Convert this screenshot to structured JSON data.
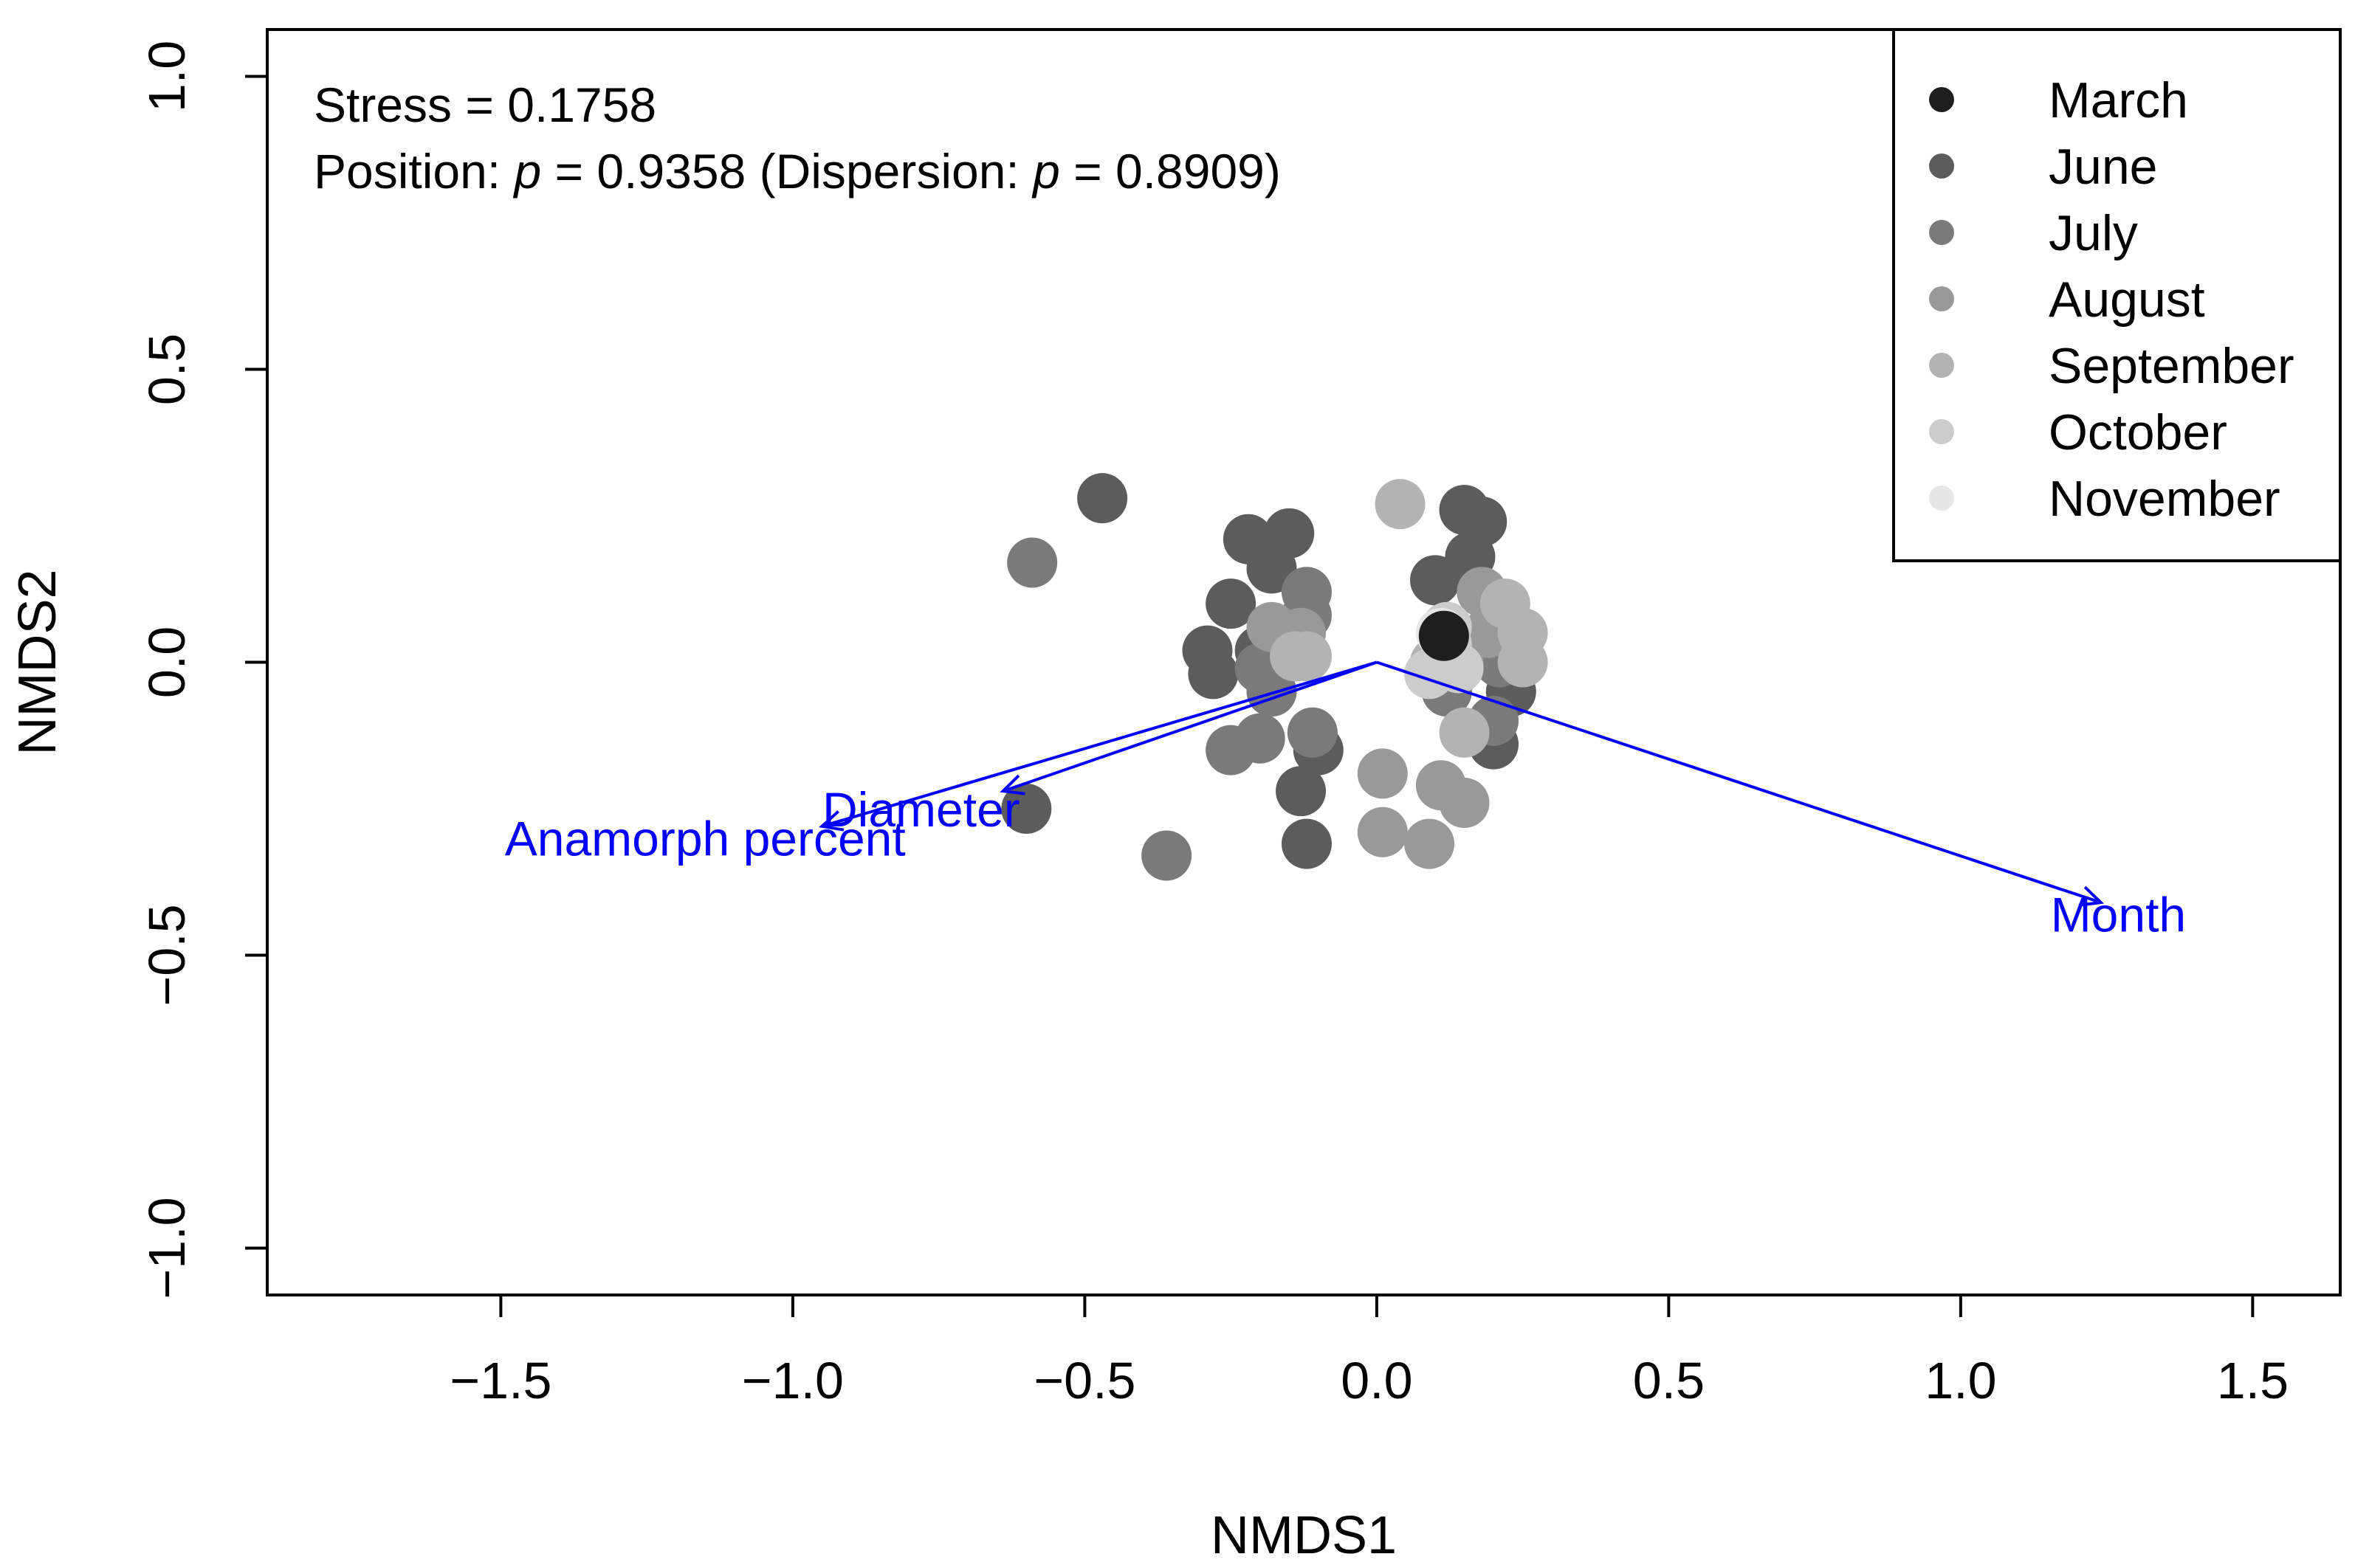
{
  "chart_data": {
    "type": "scatter",
    "xlabel": "NMDS1",
    "ylabel": "NMDS2",
    "xlim": [
      -1.9,
      1.65
    ],
    "ylim": [
      -1.08,
      1.08
    ],
    "xticks": [
      -1.5,
      -1.0,
      -0.5,
      0.0,
      0.5,
      1.0,
      1.5
    ],
    "xtick_labels": [
      "−1.5",
      "−1.0",
      "−0.5",
      "0.0",
      "0.5",
      "1.0",
      "1.5"
    ],
    "yticks": [
      -1.0,
      -0.5,
      0.0,
      0.5,
      1.0
    ],
    "ytick_labels": [
      "−1.0",
      "−0.5",
      "0.0",
      "0.5",
      "1.0"
    ],
    "grid": false,
    "annotations": {
      "stress": "Stress = 0.1758",
      "position_prefix": "Position: ",
      "p_symbol": "p",
      "position_value": " = 0.9358 (Dispersion: ",
      "dispersion_value": " = 0.8909)"
    },
    "legend": {
      "placement": "top-right",
      "entries": [
        {
          "name": "March",
          "color": "#1e1e1e"
        },
        {
          "name": "June",
          "color": "#5c5c5c"
        },
        {
          "name": "July",
          "color": "#7a7a7a"
        },
        {
          "name": "August",
          "color": "#999999"
        },
        {
          "name": "September",
          "color": "#b3b3b3"
        },
        {
          "name": "October",
          "color": "#cccccc"
        },
        {
          "name": "November",
          "color": "#e6e6e6"
        }
      ]
    },
    "series": [
      {
        "name": "June",
        "color": "#5c5c5c",
        "points": [
          [
            -0.47,
            0.28
          ],
          [
            -0.6,
            -0.25
          ],
          [
            -0.22,
            0.21
          ],
          [
            -0.15,
            0.22
          ],
          [
            -0.18,
            0.16
          ],
          [
            -0.25,
            0.1
          ],
          [
            -0.29,
            0.02
          ],
          [
            -0.28,
            -0.02
          ],
          [
            -0.2,
            0.02
          ],
          [
            -0.13,
            -0.22
          ],
          [
            -0.12,
            -0.31
          ],
          [
            -0.1,
            -0.15
          ],
          [
            0.1,
            0.14
          ],
          [
            0.15,
            0.26
          ],
          [
            0.18,
            0.24
          ],
          [
            0.16,
            0.18
          ],
          [
            0.12,
            0.06
          ],
          [
            0.12,
            -0.04
          ],
          [
            0.2,
            -0.14
          ],
          [
            0.23,
            -0.05
          ]
        ]
      },
      {
        "name": "July",
        "color": "#7a7a7a",
        "points": [
          [
            -0.59,
            0.17
          ],
          [
            -0.36,
            -0.33
          ],
          [
            -0.25,
            -0.15
          ],
          [
            -0.2,
            -0.13
          ],
          [
            -0.18,
            -0.05
          ],
          [
            -0.12,
            0.12
          ],
          [
            -0.12,
            0.08
          ],
          [
            -0.11,
            -0.12
          ],
          [
            -0.2,
            -0.01
          ],
          [
            0.13,
            -0.02
          ],
          [
            0.12,
            -0.05
          ],
          [
            0.2,
            -0.1
          ],
          [
            0.21,
            0.0
          ]
        ]
      },
      {
        "name": "August",
        "color": "#999999",
        "points": [
          [
            -0.13,
            0.05
          ],
          [
            -0.18,
            0.06
          ],
          [
            0.01,
            -0.19
          ],
          [
            0.01,
            -0.29
          ],
          [
            0.09,
            -0.31
          ],
          [
            0.11,
            -0.21
          ],
          [
            0.15,
            -0.24
          ],
          [
            0.18,
            0.12
          ],
          [
            0.19,
            0.05
          ],
          [
            0.14,
            0.0
          ]
        ]
      },
      {
        "name": "September",
        "color": "#b3b3b3",
        "points": [
          [
            0.04,
            0.27
          ],
          [
            -0.12,
            0.01
          ],
          [
            -0.14,
            0.01
          ],
          [
            0.15,
            -0.12
          ],
          [
            0.22,
            0.1
          ],
          [
            0.25,
            0.05
          ],
          [
            0.25,
            0.0
          ],
          [
            0.1,
            0.0
          ]
        ]
      },
      {
        "name": "October",
        "color": "#cccccc",
        "points": [
          [
            0.12,
            0.03
          ],
          [
            0.14,
            -0.01
          ],
          [
            0.09,
            -0.02
          ],
          [
            0.12,
            0.06
          ]
        ]
      },
      {
        "name": "November",
        "color": "#e6e6e6",
        "points": [
          [
            0.11,
            0.05
          ]
        ]
      },
      {
        "name": "March",
        "color": "#1e1e1e",
        "points": [
          [
            0.115,
            0.045
          ]
        ]
      }
    ],
    "vectors": [
      {
        "name": "Diameter",
        "x": -0.64,
        "y": -0.22,
        "label_x": -0.78,
        "label_y": -0.28,
        "color": "#0000ff"
      },
      {
        "name": "Anamorph_percent",
        "label_text": "Anamorph  percent",
        "x": -0.95,
        "y": -0.28,
        "label_x": -1.15,
        "label_y": -0.33,
        "color": "#0000ff"
      },
      {
        "name": "Month",
        "x": 1.24,
        "y": -0.41,
        "label_x": 1.27,
        "label_y": -0.46,
        "color": "#0000ff"
      }
    ]
  }
}
